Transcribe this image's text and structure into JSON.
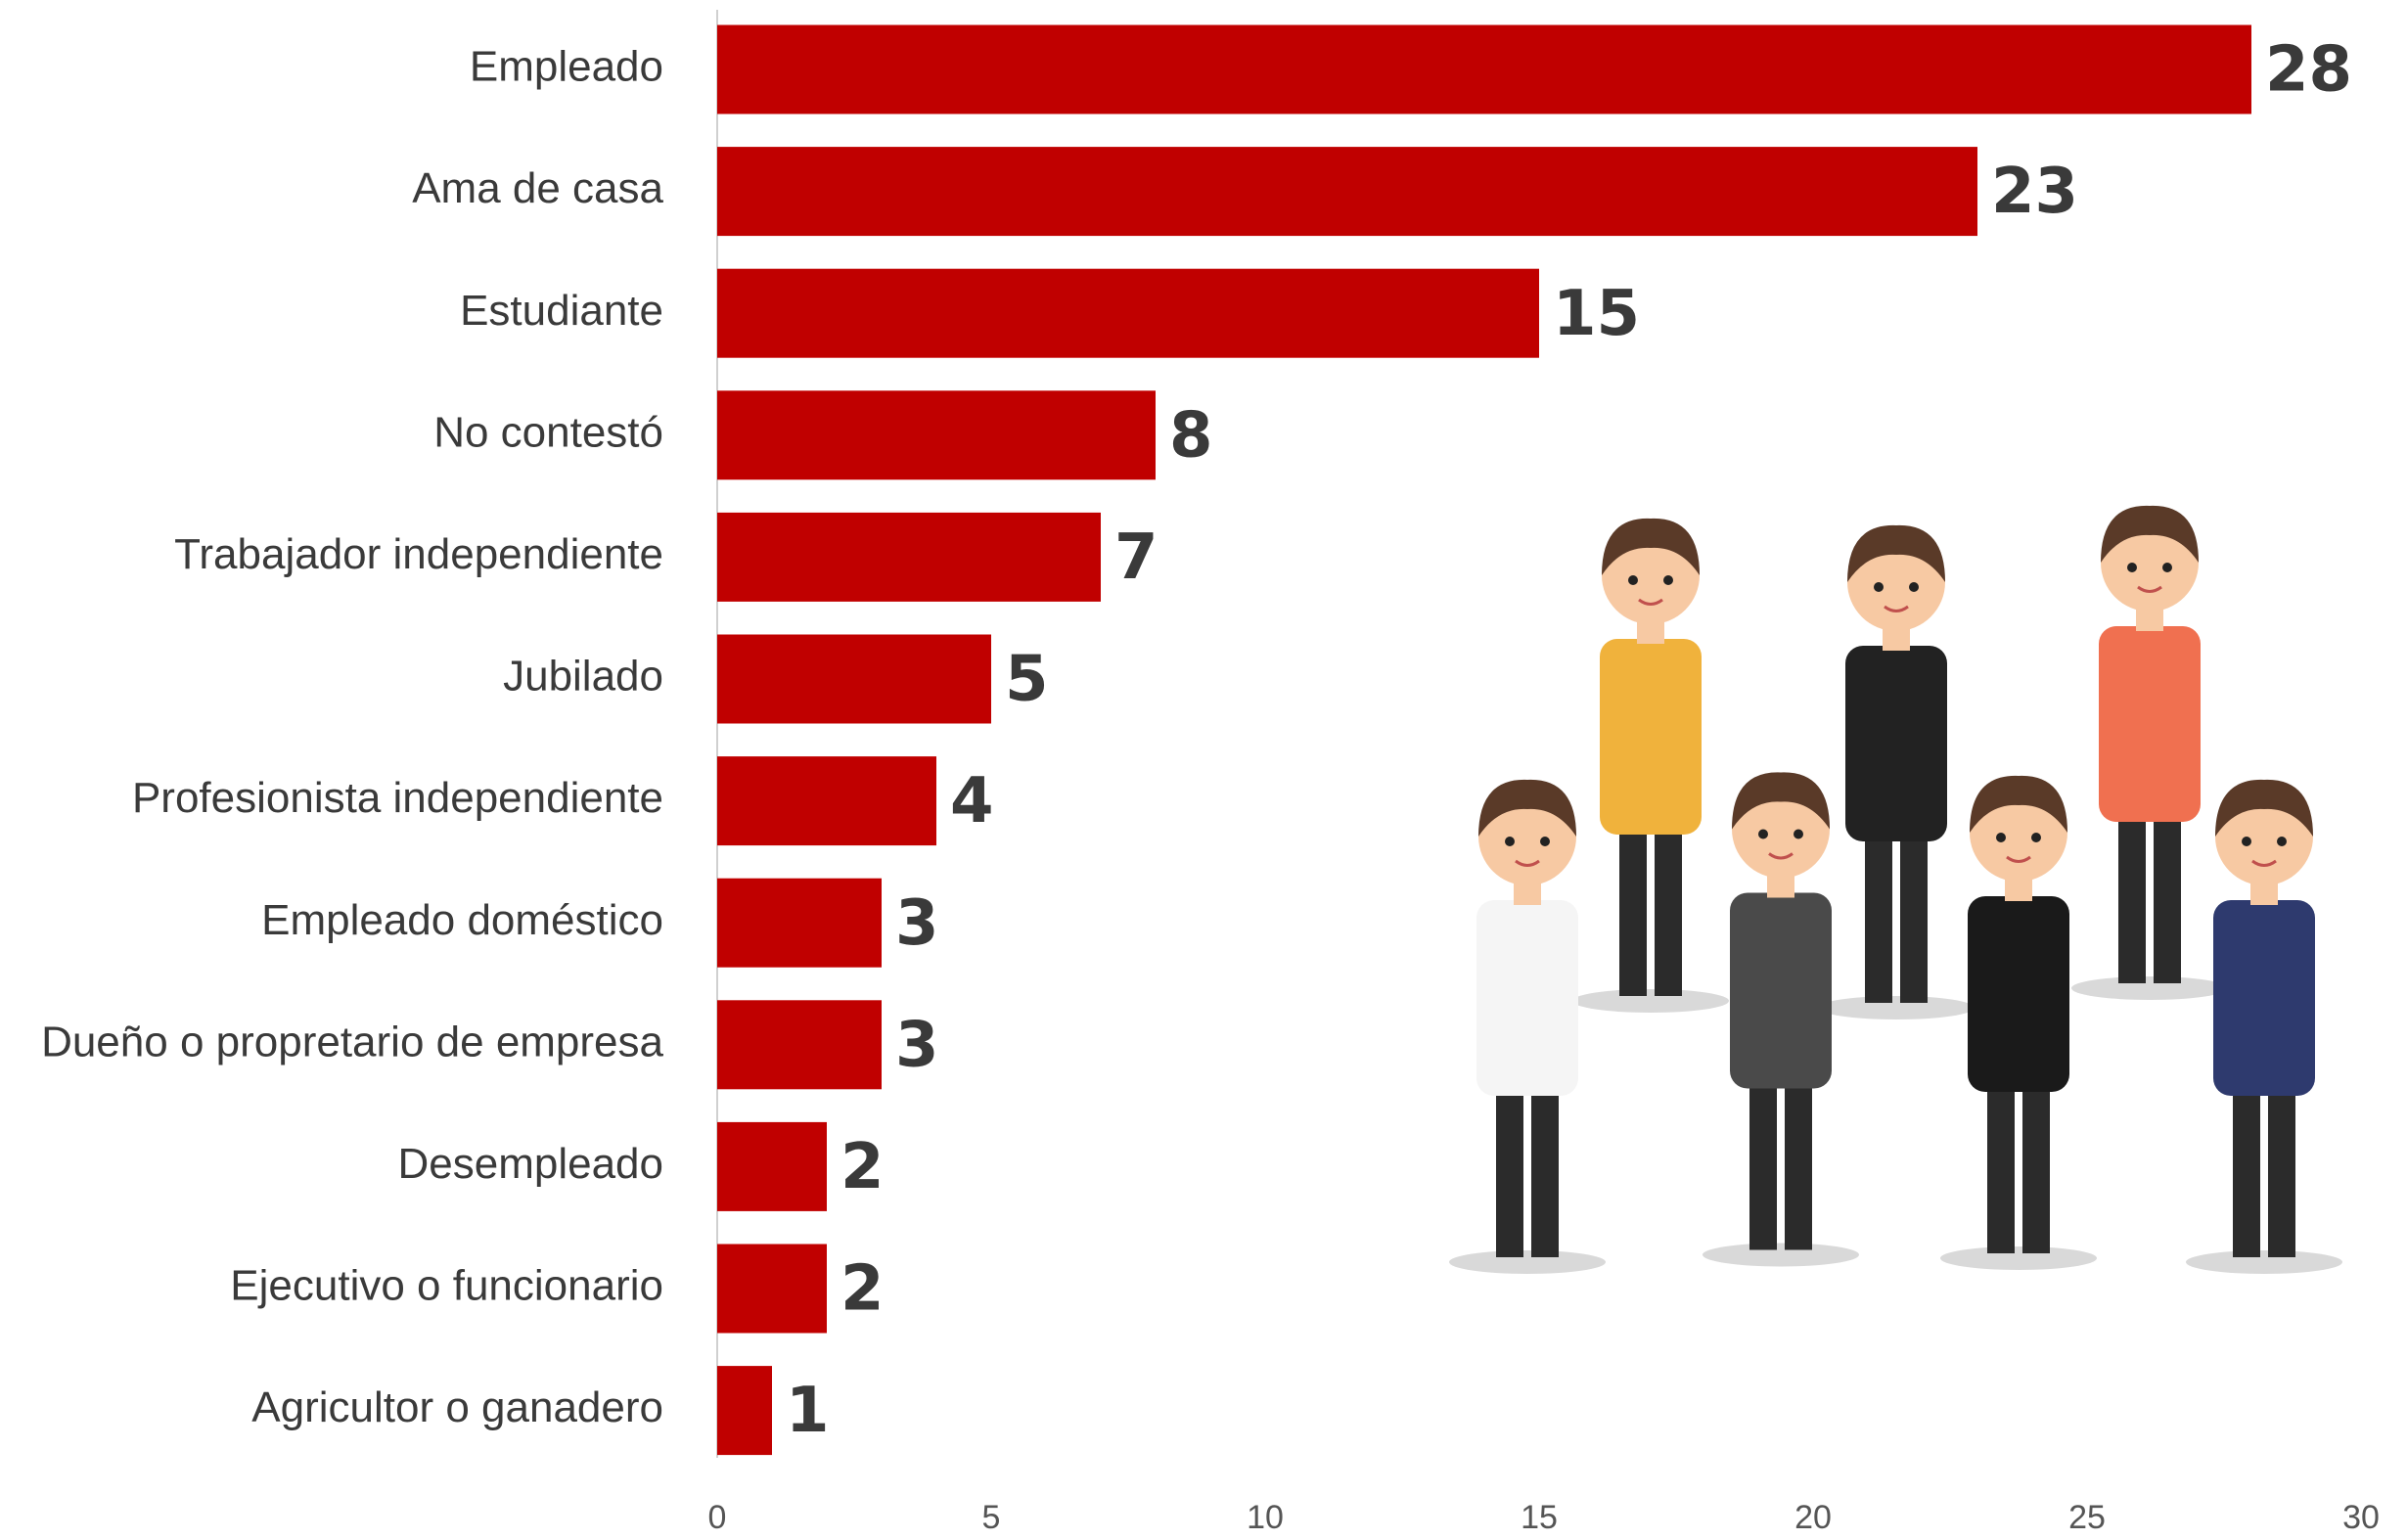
{
  "chart_data": {
    "type": "bar",
    "orientation": "horizontal",
    "categories": [
      "Empleado",
      "Ama de casa",
      "Estudiante",
      "No contestó",
      "Trabajador independiente",
      "Jubilado",
      "Profesionista independiente",
      "Empleado doméstico",
      "Dueño o propretario de empresa",
      "Desempleado",
      "Ejecutivo o funcionario",
      "Agricultor o ganadero"
    ],
    "values": [
      28,
      23,
      15,
      8,
      7,
      5,
      4,
      3,
      3,
      2,
      2,
      1
    ],
    "color": "#c00000",
    "xlim": [
      0,
      30
    ],
    "xticks": [
      0,
      5,
      10,
      15,
      20,
      25,
      30
    ],
    "grid": false
  }
}
